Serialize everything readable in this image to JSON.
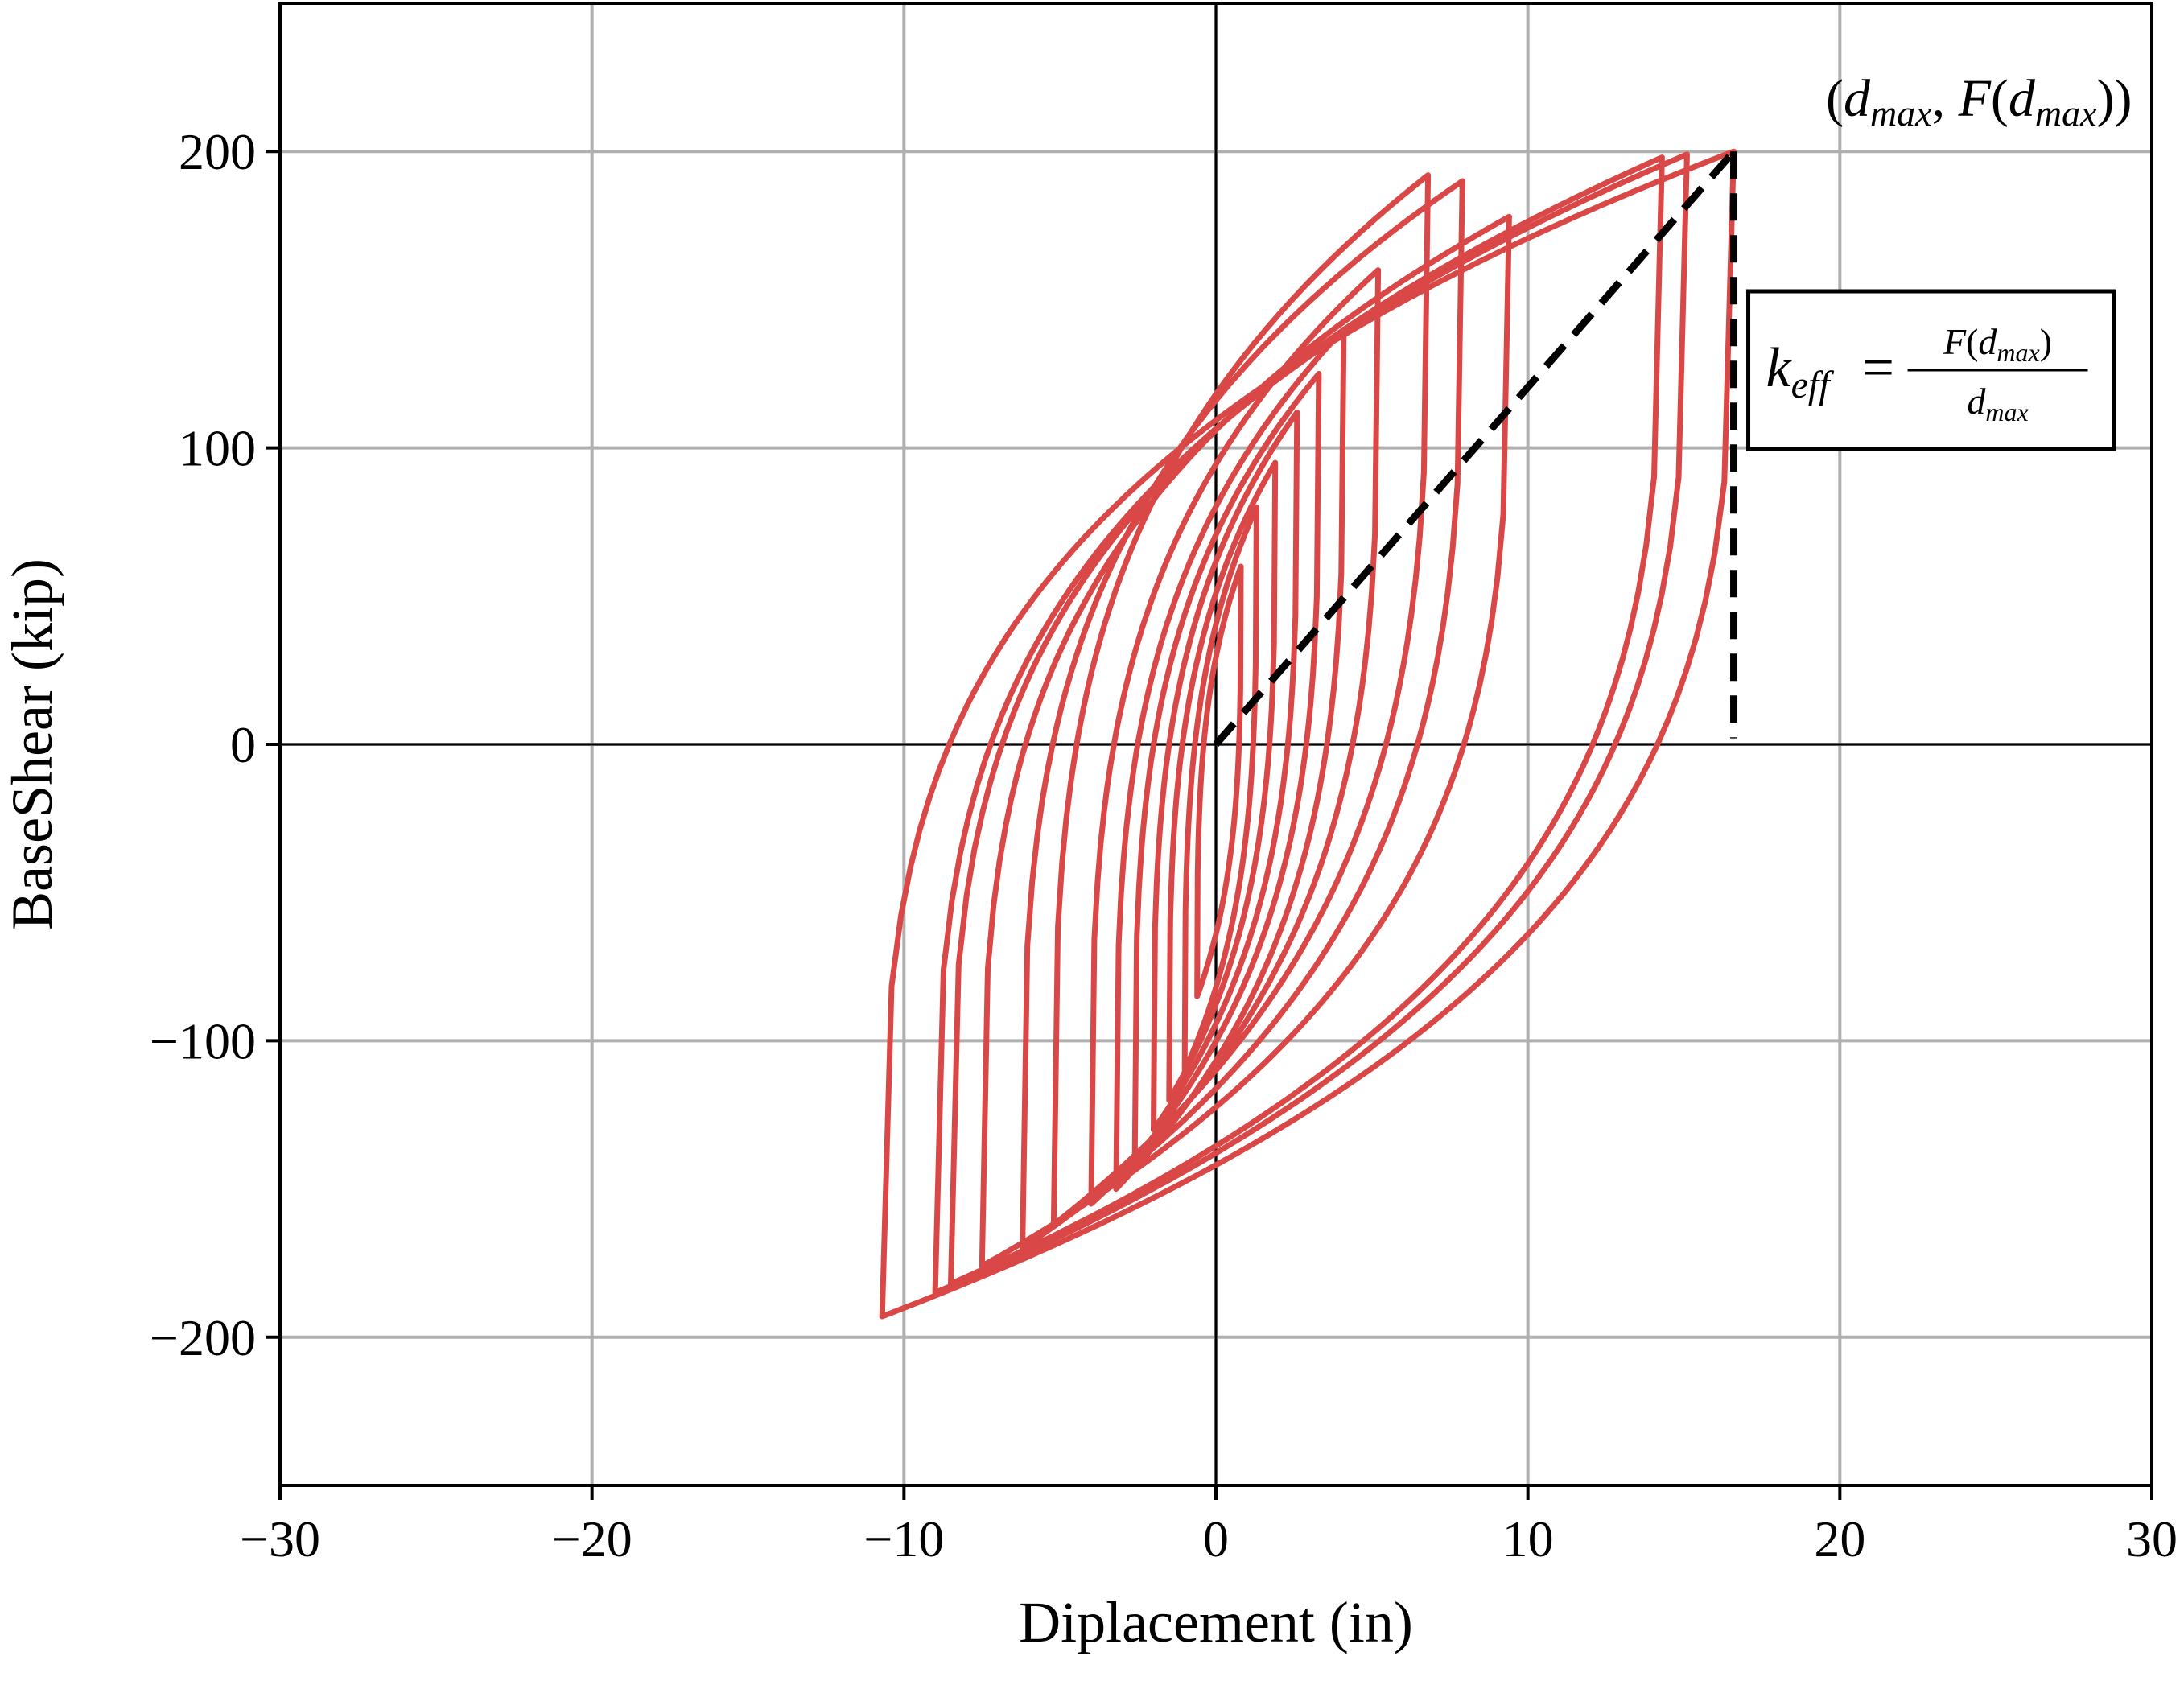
{
  "chart_data": {
    "type": "line",
    "title": "",
    "xlabel": "Diplacement (in)",
    "ylabel": "BaseShear (kip)",
    "xlim": [
      -30,
      30
    ],
    "ylim": [
      -250,
      250
    ],
    "xticks": [
      -30,
      -20,
      -10,
      0,
      10,
      20,
      30
    ],
    "yticks": [
      -200,
      -100,
      0,
      100,
      200
    ],
    "xtick_labels": [
      "−30",
      "−20",
      "−10",
      "0",
      "10",
      "20",
      "30"
    ],
    "ytick_labels": [
      "−200",
      "−100",
      "0",
      "100",
      "200"
    ],
    "grid": true,
    "colors": {
      "hysteresis": "#d94747",
      "guide": "#000000",
      "grid": "#b0b0b0"
    },
    "hysteresis_loops": [
      {
        "dpos": 16.6,
        "fpos": 200,
        "dneg": -10.7,
        "fneg": -193
      },
      {
        "dpos": 15.1,
        "fpos": 199,
        "dneg": -9.0,
        "fneg": -185
      },
      {
        "dpos": 14.3,
        "fpos": 198,
        "dneg": -8.5,
        "fneg": -182
      },
      {
        "dpos": 9.4,
        "fpos": 178,
        "dneg": -7.5,
        "fneg": -176
      },
      {
        "dpos": 7.9,
        "fpos": 190,
        "dneg": -6.2,
        "fneg": -170
      },
      {
        "dpos": 6.8,
        "fpos": 192,
        "dneg": -5.2,
        "fneg": -162
      },
      {
        "dpos": 5.2,
        "fpos": 160,
        "dneg": -4.0,
        "fneg": -155
      },
      {
        "dpos": 4.1,
        "fpos": 140,
        "dneg": -3.2,
        "fneg": -150
      },
      {
        "dpos": 3.3,
        "fpos": 125,
        "dneg": -2.6,
        "fneg": -140
      },
      {
        "dpos": 2.6,
        "fpos": 112,
        "dneg": -2.0,
        "fneg": -130
      },
      {
        "dpos": 1.9,
        "fpos": 95,
        "dneg": -1.5,
        "fneg": -120
      },
      {
        "dpos": 1.3,
        "fpos": 80,
        "dneg": -1.0,
        "fneg": -110
      },
      {
        "dpos": 0.8,
        "fpos": 60,
        "dneg": -0.6,
        "fneg": -85
      }
    ],
    "secant_line": {
      "x": [
        0,
        16.6
      ],
      "y": [
        0,
        200
      ]
    },
    "vertical_marker": {
      "x": 16.6,
      "y": [
        2,
        200
      ]
    },
    "point_label": {
      "x": 16.6,
      "y": 200,
      "text": "(d_max, F(d_max))"
    },
    "equation_box": {
      "text": "k_eff = F(d_max) / d_max"
    }
  }
}
